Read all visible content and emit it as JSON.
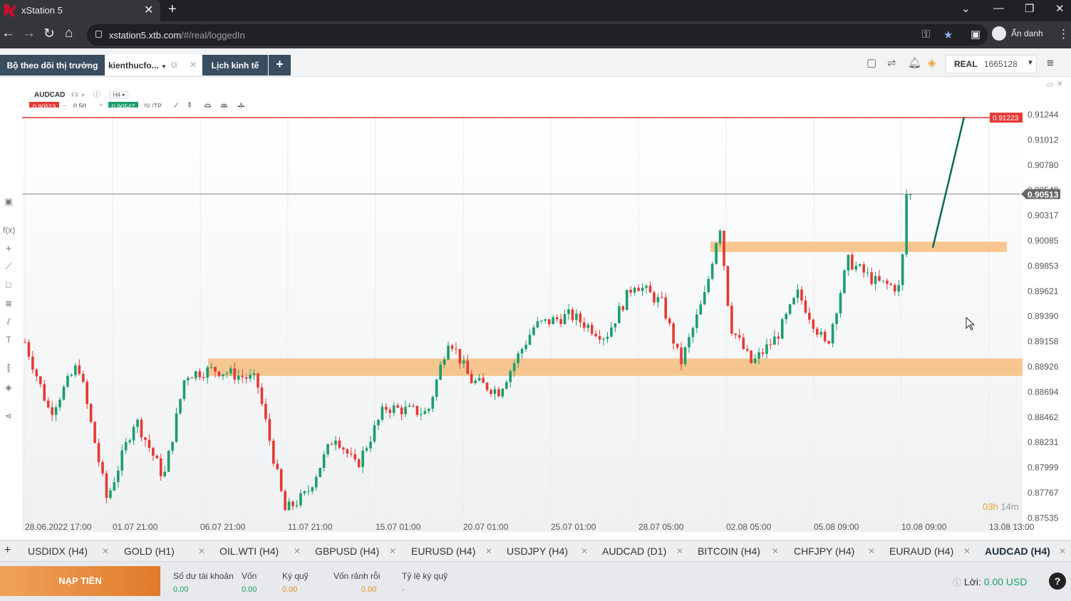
{
  "browser": {
    "tab_title": "xStation 5",
    "url_host": "xstation5.xtb.com",
    "url_path": "/#/real/loggedIn",
    "profile_label": "Ẩn danh"
  },
  "xtb": {
    "tabs": {
      "market_watch": "Bộ theo dõi thị trường",
      "workspace": "kienthucfo...",
      "calendar": "Lịch kinh tế"
    },
    "account_type": "REAL",
    "account_number": "1665128"
  },
  "instrument": {
    "symbol": "AUDCAD",
    "type": "FX",
    "timeframe": "H4",
    "bid": "0.90513",
    "ask": "0.90547",
    "volume": "0.50",
    "sltp_label": "SL/TP"
  },
  "chart_data": {
    "type": "candlestick",
    "y_ticks": [
      "0.91244",
      "0.91012",
      "0.90780",
      "0.90548",
      "0.90317",
      "0.90085",
      "0.89853",
      "0.89621",
      "0.89390",
      "0.89158",
      "0.88926",
      "0.88694",
      "0.88462",
      "0.88231",
      "0.87999",
      "0.87767",
      "0.87535"
    ],
    "x_ticks": [
      "28.06.2022 17:00",
      "01.07 21:00",
      "06.07 21:00",
      "11.07 21:00",
      "15.07 01:00",
      "20.07 01:00",
      "25.07 01:00",
      "28.07 05:00",
      "02.08 05:00",
      "05.08 09:00",
      "10.08 09:00",
      "13.08 13:00"
    ],
    "current_price": "0.90513",
    "target_price": "0.91223",
    "countdown": {
      "hours": "03h",
      "minutes": "14m"
    },
    "ylim": [
      0.87535,
      0.91244
    ],
    "zones": [
      {
        "from": 0.8884,
        "to": 0.89
      },
      {
        "from": 0.8998,
        "to": 0.90075
      }
    ],
    "projection": {
      "from": 0.9002,
      "to": 0.91223
    },
    "colors": {
      "up": "#1b9e6b",
      "down": "#e53935",
      "zone": "#f7b56d",
      "target_line": "#e53935",
      "projection": "#0b6b4a"
    }
  },
  "symbol_tabs": [
    "USDIDX (H4)",
    "GOLD (H1)",
    "OIL.WTI (H4)",
    "GBPUSD (H4)",
    "EURUSD (H4)",
    "USDJPY (H4)",
    "AUDCAD (D1)",
    "BITCOIN (H4)",
    "CHFJPY (H4)",
    "EURAUD (H4)",
    "AUDCAD (H4)"
  ],
  "footer": {
    "deposit": "NẠP TIỀN",
    "cols": [
      {
        "label": "Số dư tài khoản",
        "value": "0.00"
      },
      {
        "label": "Vốn",
        "value": "0.00"
      },
      {
        "label": "Ký quỹ",
        "value": "0.00"
      },
      {
        "label": "Vốn rảnh rỗi",
        "value": "0.00"
      },
      {
        "label": "Tỷ lệ ký quỹ",
        "value": "-"
      }
    ],
    "profit_label": "Lời:",
    "profit_value": "0.00 USD"
  }
}
